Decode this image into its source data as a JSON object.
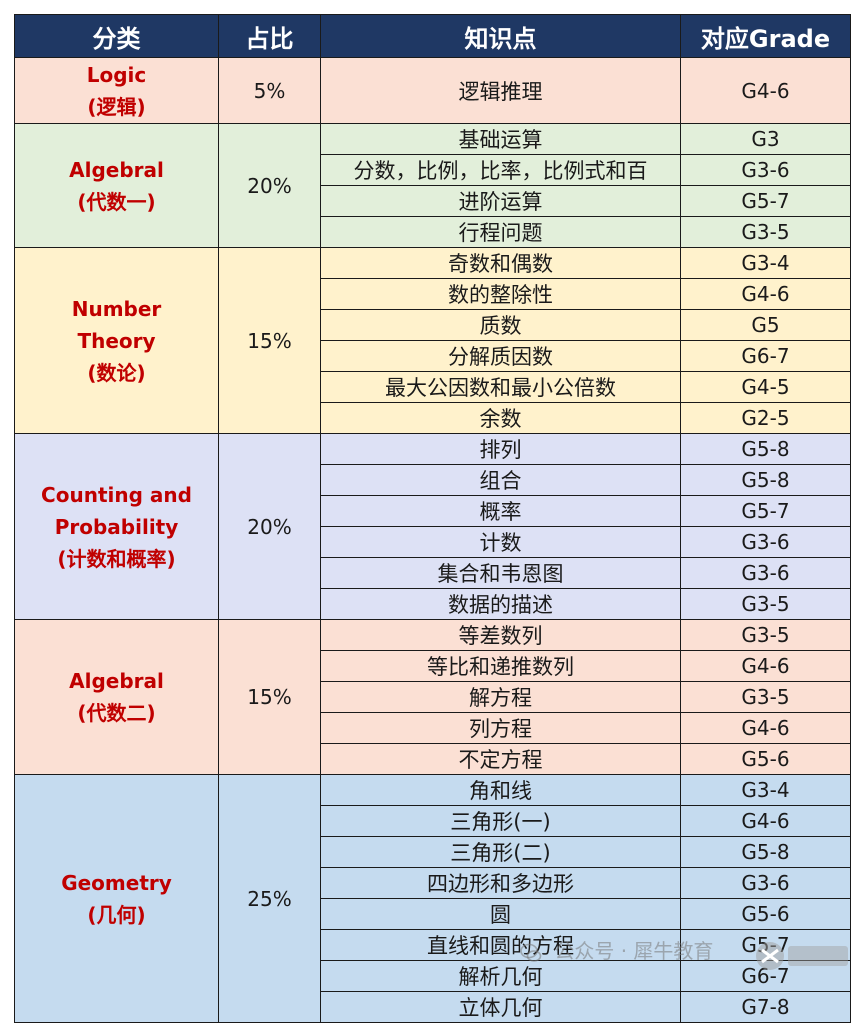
{
  "header": {
    "category": "分类",
    "share": "占比",
    "topic": "知识点",
    "grade": "对应Grade"
  },
  "groups": [
    {
      "category_en": "Logic",
      "category_cn": "(逻辑)",
      "share": "5%",
      "topics": [
        {
          "name": "逻辑推理",
          "grade": "G4-6"
        }
      ]
    },
    {
      "category_en": "Algebral",
      "category_cn": "(代数一)",
      "share": "20%",
      "topics": [
        {
          "name": "基础运算",
          "grade": "G3"
        },
        {
          "name": "分数，比例，比率，比例式和百",
          "grade": "G3-6"
        },
        {
          "name": "进阶运算",
          "grade": "G5-7"
        },
        {
          "name": "行程问题",
          "grade": "G3-5"
        }
      ]
    },
    {
      "category_en_1": "Number",
      "category_en_2": "Theory",
      "category_cn": "(数论)",
      "share": "15%",
      "topics": [
        {
          "name": "奇数和偶数",
          "grade": "G3-4"
        },
        {
          "name": "数的整除性",
          "grade": "G4-6"
        },
        {
          "name": "质数",
          "grade": "G5"
        },
        {
          "name": "分解质因数",
          "grade": "G6-7"
        },
        {
          "name": "最大公因数和最小公倍数",
          "grade": "G4-5"
        },
        {
          "name": "余数",
          "grade": "G2-5"
        }
      ]
    },
    {
      "category_en_1": "Counting and",
      "category_en_2": "Probability",
      "category_cn": "(计数和概率)",
      "share": "20%",
      "topics": [
        {
          "name": "排列",
          "grade": "G5-8"
        },
        {
          "name": "组合",
          "grade": "G5-8"
        },
        {
          "name": "概率",
          "grade": "G5-7"
        },
        {
          "name": "计数",
          "grade": "G3-6"
        },
        {
          "name": "集合和韦恩图",
          "grade": "G3-6"
        },
        {
          "name": "数据的描述",
          "grade": "G3-5"
        }
      ]
    },
    {
      "category_en": "Algebral",
      "category_cn": "(代数二)",
      "share": "15%",
      "topics": [
        {
          "name": "等差数列",
          "grade": "G3-5"
        },
        {
          "name": "等比和递推数列",
          "grade": "G4-6"
        },
        {
          "name": "解方程",
          "grade": "G3-5"
        },
        {
          "name": "列方程",
          "grade": "G4-6"
        },
        {
          "name": "不定方程",
          "grade": "G5-6"
        }
      ]
    },
    {
      "category_en": "Geometry",
      "category_cn": "(几何)",
      "share": "25%",
      "topics": [
        {
          "name": "角和线",
          "grade": "G3-4"
        },
        {
          "name": "三角形(一)",
          "grade": "G4-6"
        },
        {
          "name": "三角形(二)",
          "grade": "G5-8"
        },
        {
          "name": "四边形和多边形",
          "grade": "G3-6"
        },
        {
          "name": "圆",
          "grade": "G5-6"
        },
        {
          "name": "直线和圆的方程",
          "grade": "G5-7"
        },
        {
          "name": "解析几何",
          "grade": "G6-7"
        },
        {
          "name": "立体几何",
          "grade": "G7-8"
        }
      ]
    }
  ],
  "watermark": {
    "text": "公众号 · 犀牛教育",
    "logo_text": "犀牛教育"
  },
  "colors": {
    "header_bg": "#1f3864",
    "category_text": "#c00000"
  }
}
